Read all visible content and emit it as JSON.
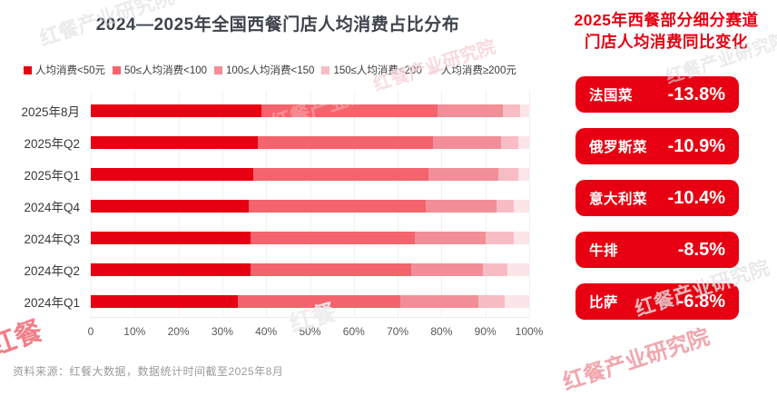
{
  "chart_data": {
    "type": "bar",
    "orientation": "horizontal_stacked",
    "title": "2024—2025年全国西餐门店人均消费占比分布",
    "categories": [
      "2025年8月",
      "2025年Q2",
      "2025年Q1",
      "2024年Q4",
      "2024年Q3",
      "2024年Q2",
      "2024年Q1"
    ],
    "series": [
      {
        "name": "人均消费<50元",
        "color": "#e60012",
        "values": [
          39,
          38,
          37,
          36,
          36.5,
          36.5,
          33.5
        ]
      },
      {
        "name": "50≤人均消费<100",
        "color": "#f4646c",
        "values": [
          40,
          40,
          40,
          40.5,
          37.5,
          36.5,
          37
        ]
      },
      {
        "name": "100≤人均消费<150",
        "color": "#f28e97",
        "values": [
          15,
          15.5,
          16,
          16,
          16,
          16.5,
          18
        ]
      },
      {
        "name": "150≤人均消费<200",
        "color": "#f8bcc4",
        "values": [
          4,
          4,
          4.5,
          4,
          6.5,
          5.5,
          6
        ]
      },
      {
        "name": "人均消费≥200元",
        "color": "#fce5e9",
        "values": [
          2,
          2.5,
          2.5,
          3.5,
          3.5,
          5,
          5.5
        ]
      }
    ],
    "x_ticks": [
      "0",
      "10%",
      "20%",
      "30%",
      "40%",
      "50%",
      "60%",
      "70%",
      "80%",
      "90%",
      "100%"
    ],
    "xlim": [
      0,
      100
    ],
    "unit": "percent",
    "grid": "vertical",
    "legend_position": "top"
  },
  "right_panel": {
    "title_line1": "2025年西餐部分细分赛道",
    "title_line2": "门店人均消费同比变化",
    "pill_color": "#e60012",
    "items": [
      {
        "label": "法国菜",
        "value": "-13.8%"
      },
      {
        "label": "俄罗斯菜",
        "value": "-10.9%"
      },
      {
        "label": "意大利菜",
        "value": "-10.4%"
      },
      {
        "label": "牛排",
        "value": "-8.5%"
      },
      {
        "label": "比萨",
        "value": "-6.8%"
      }
    ]
  },
  "footer": {
    "source": "资料来源：红餐大数据，数据统计时间截至2025年8月"
  },
  "watermark": {
    "text": "红餐产业研究院",
    "short": "红餐"
  },
  "colors": {
    "title_text": "#3e444c",
    "accent_red": "#e60012",
    "axis_text": "#585858",
    "source_text": "#9b9b9b",
    "gridline": "#f3f0f1"
  }
}
